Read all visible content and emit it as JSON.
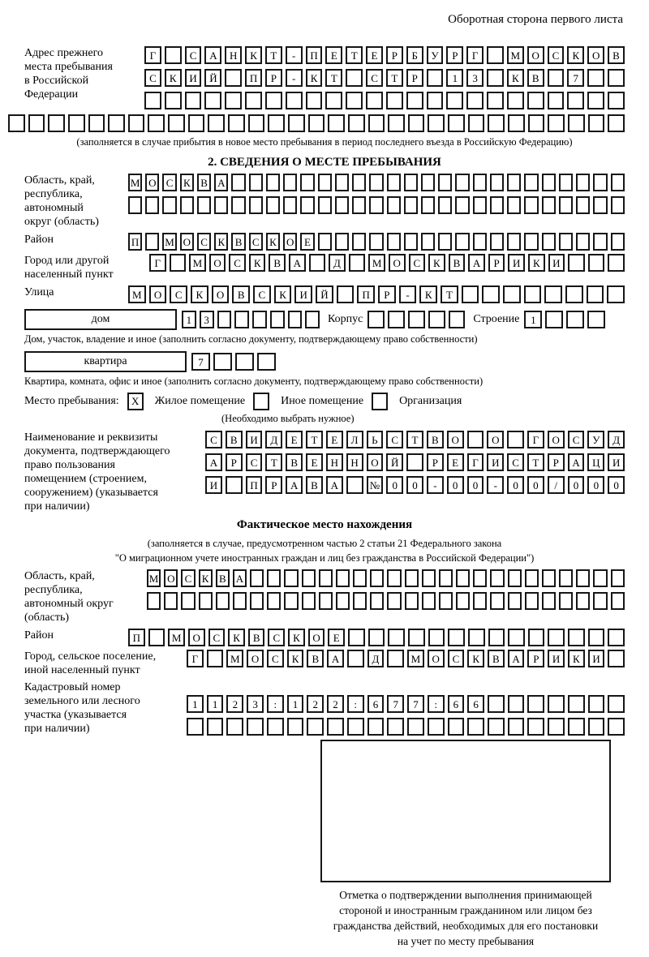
{
  "header": {
    "side_note": "Оборотная сторона первого листа"
  },
  "prev_address": {
    "label": "Адрес прежнего\nместа пребывания\nв Российской\nФедерации",
    "rows": [
      {
        "text": "Г САНКТ-ПЕТЕРБУРГ МОСКОВ",
        "cells": 24
      },
      {
        "text": "СКИЙ ПР-КТ СТР 13 КВ 7",
        "cells": 24
      },
      {
        "text": "",
        "cells": 24
      },
      {
        "text": "",
        "cells": 31
      }
    ],
    "note": "(заполняется в случае прибытия в новое место пребывания в период последнего въезда в Российскую Федерацию)"
  },
  "section2": {
    "title": "2. СВЕДЕНИЯ О МЕСТЕ ПРЕБЫВАНИЯ",
    "region": {
      "label": "Область, край,\nреспублика,\nавтономный\nокруг (область)",
      "rows": [
        {
          "text": "МОСКВА",
          "cells": 29
        },
        {
          "text": "",
          "cells": 29
        }
      ]
    },
    "district": {
      "label": "Район",
      "row": {
        "text": "П МОСКВСКОЕ",
        "cells": 29
      }
    },
    "city": {
      "label": "Город или другой\nнаселенный пункт",
      "row": {
        "text": "Г МОСКВА Д МОСКВАРИКИ",
        "cells": 24
      }
    },
    "street": {
      "label": "Улица",
      "row": {
        "text": "МОСКОВСКИЙ ПР-КТ",
        "cells": 24
      }
    },
    "house": {
      "type_label": "дом",
      "number_row": {
        "text": "13",
        "cells": 8
      },
      "korpus_label": "Корпус",
      "korpus_row": {
        "text": "",
        "cells": 5
      },
      "stroenie_label": "Строение",
      "stroenie_row": {
        "text": "1",
        "cells": 4
      },
      "note": "Дом, участок, владение и иное (заполнить согласно документу, подтверждающему право собственности)"
    },
    "apartment": {
      "type_label": "квартира",
      "row": {
        "text": "7",
        "cells": 4
      },
      "note": "Квартира, комната, офис и иное (заполнить согласно документу, подтверждающему право собственности)"
    },
    "stay_type": {
      "label": "Место пребывания:",
      "options": [
        {
          "label": "Жилое помещение",
          "mark": "X"
        },
        {
          "label": "Иное помещение",
          "mark": ""
        },
        {
          "label": "Организация",
          "mark": ""
        }
      ],
      "note": "(Необходимо выбрать нужное)"
    },
    "document": {
      "label": "Наименование и реквизиты\nдокумента, подтверждающего\nправо пользования\nпомещением (строением,\nсооружением) (указывается\nпри наличии)",
      "rows": [
        {
          "text": "СВИДЕТЕЛЬСТВО О ГОСУД",
          "cells": 21
        },
        {
          "text": "АРСТВЕННОЙ РЕГИСТРАЦИ",
          "cells": 21
        },
        {
          "text": "И ПРАВА №00-00-00/000",
          "cells": 21
        }
      ]
    }
  },
  "actual_location": {
    "title": "Фактическое место нахождения",
    "note": "(заполняется в случае, предусмотренном частью 2 статьи 21 Федерального закона\n\"О миграционном учете иностранных граждан и лиц без гражданства в Российской Федерации\")",
    "region": {
      "label": "Область, край,\nреспублика,\nавтономный округ\n(область)",
      "rows": [
        {
          "text": "МОСКВА",
          "cells": 28
        },
        {
          "text": "",
          "cells": 28
        }
      ]
    },
    "district": {
      "label": "Район",
      "row": {
        "text": "П МОСКВСКОЕ",
        "cells": 25
      }
    },
    "city": {
      "label": "Город, сельское поселение,\nиной населенный пункт",
      "row": {
        "text": "Г МОСКВА Д МОСКВАРИКИ",
        "cells": 22
      }
    },
    "cadastral": {
      "label": "Кадастровый номер\nземельного или лесного\nучастка (указывается\nпри наличии)",
      "rows": [
        {
          "text": "1123:122:677:66",
          "cells": 22
        },
        {
          "text": "",
          "cells": 22
        }
      ]
    }
  },
  "stamp": {
    "caption": "Отметка о подтверждении выполнения принимающей\nстороной и иностранным гражданином или лицом без\nгражданства действий, необходимых для его постановки\nна учет по месту пребывания"
  }
}
